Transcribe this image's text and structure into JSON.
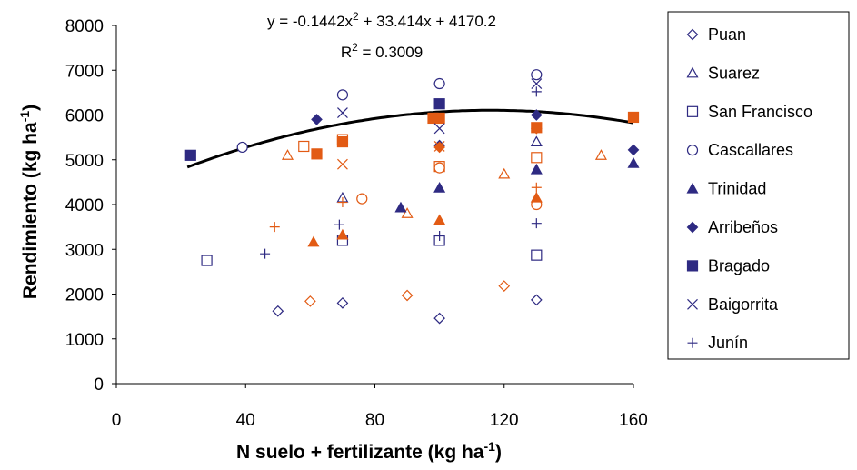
{
  "chart_data": {
    "type": "scatter",
    "title": "",
    "xlabel": "N suelo + fertilizante (kg ha",
    "xlabel_sup": "-1",
    "xlabel_end": ")",
    "ylabel": "Rendimiento (kg ha",
    "ylabel_sup": "-1",
    "ylabel_end": ")",
    "xlim": [
      0,
      160
    ],
    "ylim": [
      0,
      8000
    ],
    "xticks": [
      0,
      40,
      80,
      120,
      160
    ],
    "xtick_labels": [
      "0",
      "40",
      "80",
      "120",
      "160"
    ],
    "yticks": [
      0,
      1000,
      2000,
      3000,
      4000,
      5000,
      6000,
      7000,
      8000
    ],
    "ytick_labels": [
      "0",
      "1000",
      "2000",
      "3000",
      "4000",
      "5000",
      "6000",
      "7000",
      "8000"
    ],
    "grid": false,
    "legend_position": "right",
    "annotation": {
      "eq_pre": "y = -0.1442x",
      "eq_sup": "2",
      "eq_post": " + 33.414x + 4170.2",
      "r2_pre": "R",
      "r2_sup": "2",
      "r2_post": " = 0.3009"
    },
    "trendline": {
      "a": -0.1442,
      "b": 33.414,
      "c": 4170.2,
      "x_range": [
        22,
        160
      ],
      "color": "#000000"
    },
    "colors": {
      "blue": "#2e2a82",
      "orange": "#e25b14"
    },
    "series": [
      {
        "name": "Puan",
        "marker": "diamond",
        "filled": false,
        "points": [
          {
            "x": 50,
            "y": 1620,
            "c": "blue"
          },
          {
            "x": 70,
            "y": 1800,
            "c": "blue"
          },
          {
            "x": 100,
            "y": 1460,
            "c": "blue"
          },
          {
            "x": 130,
            "y": 1870,
            "c": "blue"
          },
          {
            "x": 60,
            "y": 1840,
            "c": "orange"
          },
          {
            "x": 90,
            "y": 1970,
            "c": "orange"
          },
          {
            "x": 120,
            "y": 2180,
            "c": "orange"
          }
        ]
      },
      {
        "name": "Suarez",
        "marker": "triangle",
        "filled": false,
        "points": [
          {
            "x": 70,
            "y": 4150,
            "c": "blue"
          },
          {
            "x": 130,
            "y": 5400,
            "c": "blue"
          },
          {
            "x": 53,
            "y": 5100,
            "c": "orange"
          },
          {
            "x": 90,
            "y": 3800,
            "c": "orange"
          },
          {
            "x": 120,
            "y": 4680,
            "c": "orange"
          },
          {
            "x": 150,
            "y": 5100,
            "c": "orange"
          }
        ]
      },
      {
        "name": "San Francisco",
        "marker": "square",
        "filled": false,
        "points": [
          {
            "x": 28,
            "y": 2750,
            "c": "blue"
          },
          {
            "x": 70,
            "y": 3200,
            "c": "blue"
          },
          {
            "x": 100,
            "y": 3200,
            "c": "blue"
          },
          {
            "x": 130,
            "y": 2870,
            "c": "blue"
          },
          {
            "x": 58,
            "y": 5300,
            "c": "orange"
          },
          {
            "x": 70,
            "y": 5450,
            "c": "orange"
          },
          {
            "x": 100,
            "y": 4850,
            "c": "orange"
          },
          {
            "x": 130,
            "y": 5050,
            "c": "orange"
          }
        ]
      },
      {
        "name": "Cascallares",
        "marker": "circle",
        "filled": false,
        "points": [
          {
            "x": 39,
            "y": 5280,
            "c": "blue"
          },
          {
            "x": 70,
            "y": 6450,
            "c": "blue"
          },
          {
            "x": 100,
            "y": 6700,
            "c": "blue"
          },
          {
            "x": 130,
            "y": 6900,
            "c": "blue"
          },
          {
            "x": 76,
            "y": 4130,
            "c": "orange"
          },
          {
            "x": 100,
            "y": 4820,
            "c": "orange"
          },
          {
            "x": 130,
            "y": 4000,
            "c": "orange"
          }
        ]
      },
      {
        "name": "Trinidad",
        "marker": "triangle",
        "filled": true,
        "points": [
          {
            "x": 88,
            "y": 3930,
            "c": "blue"
          },
          {
            "x": 100,
            "y": 4370,
            "c": "blue"
          },
          {
            "x": 130,
            "y": 4780,
            "c": "blue"
          },
          {
            "x": 160,
            "y": 4920,
            "c": "blue"
          },
          {
            "x": 61,
            "y": 3160,
            "c": "orange"
          },
          {
            "x": 70,
            "y": 3320,
            "c": "orange"
          },
          {
            "x": 100,
            "y": 3650,
            "c": "orange"
          },
          {
            "x": 130,
            "y": 4150,
            "c": "orange"
          }
        ]
      },
      {
        "name": "Arribeños",
        "marker": "diamond",
        "filled": true,
        "points": [
          {
            "x": 62,
            "y": 5900,
            "c": "blue"
          },
          {
            "x": 100,
            "y": 5320,
            "c": "blue"
          },
          {
            "x": 130,
            "y": 6000,
            "c": "blue"
          },
          {
            "x": 160,
            "y": 5220,
            "c": "blue"
          },
          {
            "x": 100,
            "y": 5280,
            "c": "orange"
          },
          {
            "x": 130,
            "y": 5700,
            "c": "orange"
          }
        ]
      },
      {
        "name": "Bragado",
        "marker": "square",
        "filled": true,
        "points": [
          {
            "x": 23,
            "y": 5100,
            "c": "blue"
          },
          {
            "x": 100,
            "y": 6250,
            "c": "blue"
          },
          {
            "x": 62,
            "y": 5130,
            "c": "orange"
          },
          {
            "x": 70,
            "y": 5400,
            "c": "orange"
          },
          {
            "x": 98,
            "y": 5930,
            "c": "orange"
          },
          {
            "x": 100,
            "y": 5930,
            "c": "orange"
          },
          {
            "x": 130,
            "y": 5720,
            "c": "orange"
          },
          {
            "x": 160,
            "y": 5950,
            "c": "orange"
          }
        ]
      },
      {
        "name": "Baigorrita",
        "marker": "x",
        "filled": false,
        "points": [
          {
            "x": 70,
            "y": 6050,
            "c": "blue"
          },
          {
            "x": 100,
            "y": 5700,
            "c": "blue"
          },
          {
            "x": 130,
            "y": 6700,
            "c": "blue"
          },
          {
            "x": 70,
            "y": 4900,
            "c": "orange"
          },
          {
            "x": 100,
            "y": 5300,
            "c": "orange"
          }
        ]
      },
      {
        "name": "Junín",
        "marker": "plus",
        "filled": false,
        "points": [
          {
            "x": 46,
            "y": 2900,
            "c": "blue"
          },
          {
            "x": 69,
            "y": 3550,
            "c": "blue"
          },
          {
            "x": 100,
            "y": 3300,
            "c": "blue"
          },
          {
            "x": 130,
            "y": 3580,
            "c": "blue"
          },
          {
            "x": 130,
            "y": 6520,
            "c": "blue"
          },
          {
            "x": 49,
            "y": 3500,
            "c": "orange"
          },
          {
            "x": 70,
            "y": 4050,
            "c": "orange"
          },
          {
            "x": 130,
            "y": 4380,
            "c": "orange"
          }
        ]
      }
    ]
  }
}
